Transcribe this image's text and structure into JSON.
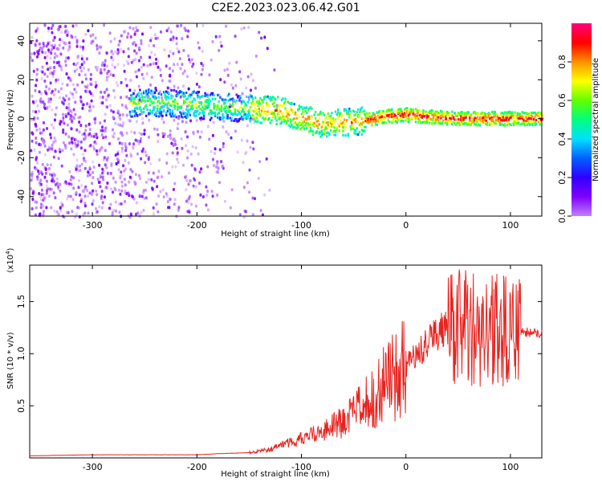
{
  "title": "C2E2.2023.023.06.42.G01",
  "colors": {
    "snr_line": "#e8231f",
    "axes": "#000000",
    "colormap": [
      "#f0e0ff",
      "#c080ff",
      "#8000ff",
      "#3000ff",
      "#0060ff",
      "#00e0ff",
      "#00ff80",
      "#60ff00",
      "#ffff00",
      "#ff9000",
      "#ff0000",
      "#ff0080"
    ]
  },
  "chart_data": [
    {
      "type": "heatmap",
      "xlabel": "Height of straight line (km)",
      "ylabel": "Frequency (Hz)",
      "xlim": [
        -360,
        130
      ],
      "ylim": [
        -50,
        49
      ],
      "xticks": [
        -300,
        -200,
        -100,
        0,
        100
      ],
      "yticks": [
        -40,
        -20,
        0,
        20,
        40
      ],
      "grid": false,
      "ridge": {
        "x": [
          -265,
          -240,
          -200,
          -180,
          -150,
          -120,
          -100,
          -80,
          -60,
          -40,
          -20,
          0,
          20,
          50,
          80,
          100,
          130
        ],
        "frequency": [
          8,
          8,
          7,
          6,
          5,
          4,
          0,
          -3,
          -2,
          -1,
          1,
          2,
          1,
          0,
          0,
          0,
          0
        ]
      },
      "colorbar": {
        "label": "Normalized spectral amplitude",
        "range": [
          0,
          1
        ],
        "ticks": [
          0.0,
          0.2,
          0.4,
          0.6,
          0.8
        ],
        "tick_labels": [
          "0.0",
          "0.2",
          "0.4",
          "0.6",
          "0.8"
        ]
      }
    },
    {
      "type": "line",
      "xlabel": "Height of straight line (km)",
      "ylabel": "SNR (10 * v/v)",
      "scale_label": "(x10",
      "scale_exponent": "4",
      "scale_close": ")",
      "xlim": [
        -360,
        130
      ],
      "ylim": [
        0.0,
        1.85
      ],
      "xticks": [
        -300,
        -200,
        -100,
        0,
        100
      ],
      "yticks": [
        0.5,
        1.0,
        1.5
      ],
      "ytick_labels": [
        "0.5",
        "1.0",
        "1.5"
      ],
      "grid": false,
      "series": [
        {
          "x": [
            -360,
            -300,
            -250,
            -200,
            -180,
            -150,
            -130,
            -120,
            -100,
            -80,
            -60,
            -40,
            -30,
            -20,
            -10,
            0,
            10,
            20,
            30,
            40,
            50,
            60,
            70,
            80,
            90,
            100,
            110,
            130
          ],
          "values": [
            0.02,
            0.03,
            0.03,
            0.03,
            0.04,
            0.05,
            0.08,
            0.12,
            0.18,
            0.25,
            0.35,
            0.5,
            0.6,
            0.7,
            0.8,
            0.9,
            1.0,
            1.1,
            1.2,
            1.25,
            1.25,
            1.25,
            1.23,
            1.22,
            1.22,
            1.22,
            1.21,
            1.2
          ]
        }
      ]
    }
  ]
}
